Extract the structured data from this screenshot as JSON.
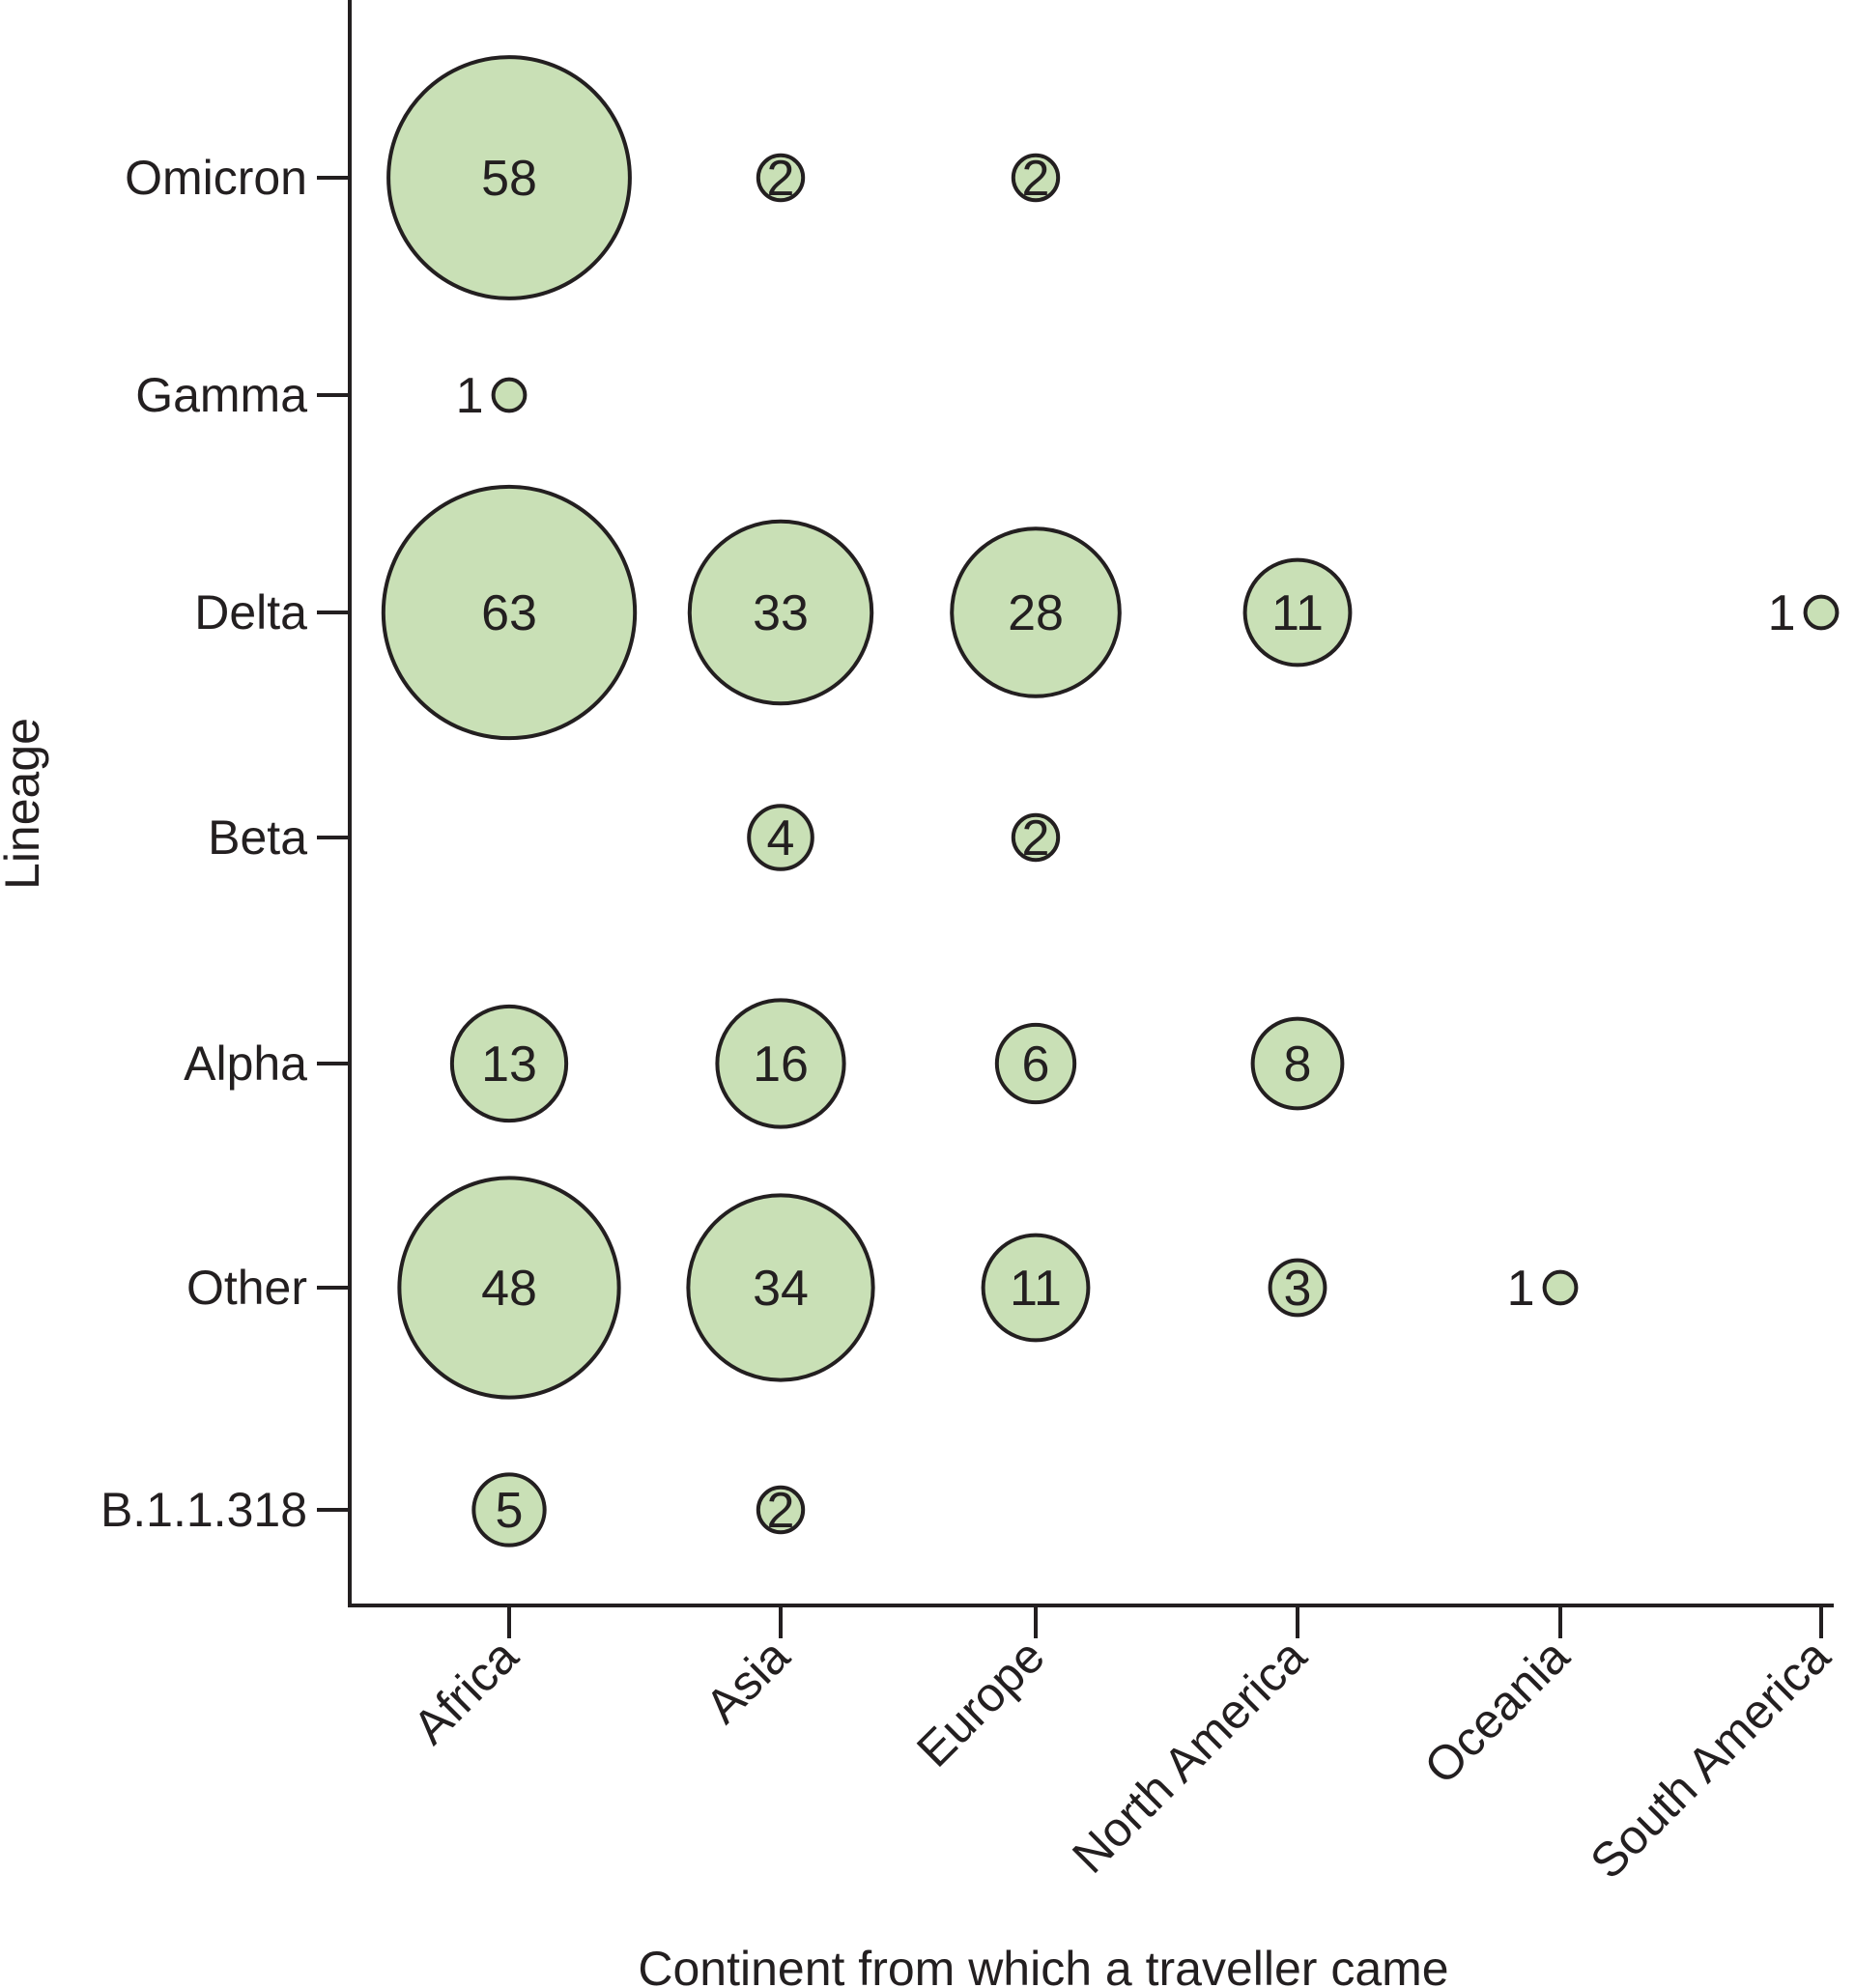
{
  "chart_data": {
    "type": "bubble",
    "title": "",
    "xlabel": "Continent from which a traveller came",
    "ylabel": "Lineage",
    "categories_x": [
      "Africa",
      "Asia",
      "Europe",
      "North America",
      "Oceania",
      "South America"
    ],
    "categories_y": [
      "Omicron",
      "Gamma",
      "Delta",
      "Beta",
      "Alpha",
      "Other",
      "B.1.1.318"
    ],
    "points": [
      {
        "lineage": "Omicron",
        "continent": "Africa",
        "count": 58
      },
      {
        "lineage": "Omicron",
        "continent": "Asia",
        "count": 2
      },
      {
        "lineage": "Omicron",
        "continent": "Europe",
        "count": 2
      },
      {
        "lineage": "Gamma",
        "continent": "Africa",
        "count": 1
      },
      {
        "lineage": "Delta",
        "continent": "Africa",
        "count": 63
      },
      {
        "lineage": "Delta",
        "continent": "Asia",
        "count": 33
      },
      {
        "lineage": "Delta",
        "continent": "Europe",
        "count": 28
      },
      {
        "lineage": "Delta",
        "continent": "North America",
        "count": 11
      },
      {
        "lineage": "Delta",
        "continent": "South America",
        "count": 1
      },
      {
        "lineage": "Beta",
        "continent": "Asia",
        "count": 4
      },
      {
        "lineage": "Beta",
        "continent": "Europe",
        "count": 2
      },
      {
        "lineage": "Alpha",
        "continent": "Africa",
        "count": 13
      },
      {
        "lineage": "Alpha",
        "continent": "Asia",
        "count": 16
      },
      {
        "lineage": "Alpha",
        "continent": "Europe",
        "count": 6
      },
      {
        "lineage": "Alpha",
        "continent": "North America",
        "count": 8
      },
      {
        "lineage": "Other",
        "continent": "Africa",
        "count": 48
      },
      {
        "lineage": "Other",
        "continent": "Asia",
        "count": 34
      },
      {
        "lineage": "Other",
        "continent": "Europe",
        "count": 11
      },
      {
        "lineage": "Other",
        "continent": "North America",
        "count": 3
      },
      {
        "lineage": "Other",
        "continent": "Oceania",
        "count": 1
      },
      {
        "lineage": "B.1.1.318",
        "continent": "Africa",
        "count": 5
      },
      {
        "lineage": "B.1.1.318",
        "continent": "Asia",
        "count": 2
      }
    ],
    "colors": {
      "bubble_fill": "#c9e0b6",
      "bubble_stroke": "#231f20",
      "axis": "#231f20"
    }
  }
}
